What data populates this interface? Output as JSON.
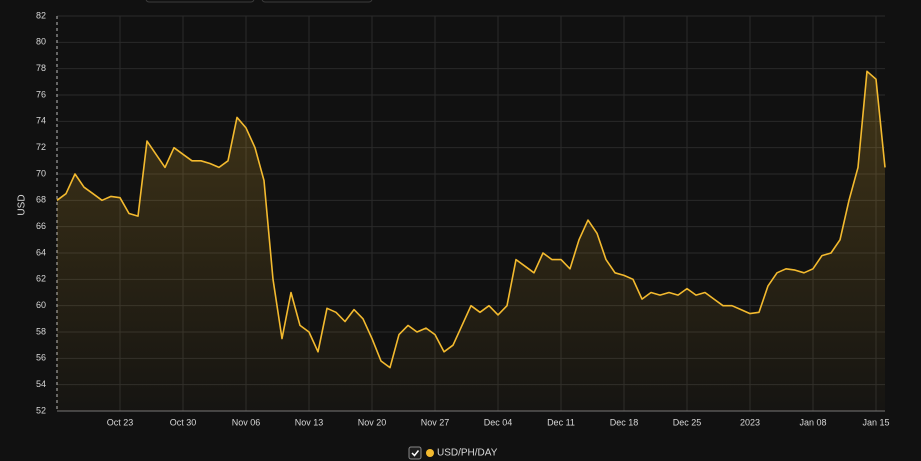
{
  "chart_data": {
    "type": "line",
    "y_label": "USD",
    "categories": [
      null,
      null,
      null,
      null,
      null,
      null,
      null,
      "Oct 23",
      null,
      null,
      null,
      null,
      null,
      null,
      "Oct 30",
      null,
      null,
      null,
      null,
      null,
      null,
      "Nov 06",
      null,
      null,
      null,
      null,
      null,
      null,
      "Nov 13",
      null,
      null,
      null,
      null,
      null,
      null,
      "Nov 20",
      null,
      null,
      null,
      null,
      null,
      null,
      "Nov 27",
      null,
      null,
      null,
      null,
      null,
      null,
      "Dec 04",
      null,
      null,
      null,
      null,
      null,
      null,
      "Dec 11",
      null,
      null,
      null,
      null,
      null,
      null,
      "Dec 18",
      null,
      null,
      null,
      null,
      null,
      null,
      "Dec 25",
      null,
      null,
      null,
      null,
      null,
      null,
      "2023",
      null,
      null,
      null,
      null,
      null,
      null,
      "Jan 08",
      null,
      null,
      null,
      null,
      null,
      null,
      "Jan 15",
      null
    ],
    "series": [
      {
        "name": "USD/PH/DAY",
        "color": "#f3ba2f",
        "values": [
          68,
          68.5,
          70,
          69,
          68.5,
          68,
          68.3,
          68.2,
          67,
          66.8,
          72.5,
          71.5,
          70.5,
          72,
          71.5,
          71,
          71,
          70.8,
          70.5,
          71,
          74.3,
          73.5,
          72,
          69.5,
          62,
          57.5,
          61,
          58.5,
          58,
          56.5,
          59.8,
          59.5,
          58.8,
          59.7,
          59,
          57.5,
          55.8,
          55.3,
          57.8,
          58.5,
          58,
          58.3,
          57.8,
          56.5,
          57,
          58.5,
          60,
          59.5,
          60,
          59.3,
          60,
          63.5,
          63,
          62.5,
          64,
          63.5,
          63.5,
          62.8,
          65,
          66.5,
          65.5,
          63.5,
          62.5,
          62.3,
          62,
          60.5,
          61,
          60.8,
          61,
          60.8,
          61.3,
          60.8,
          61,
          60.5,
          60,
          60,
          59.7,
          59.4,
          59.5,
          61.5,
          62.5,
          62.8,
          62.7,
          62.5,
          62.8,
          63.8,
          64,
          65,
          68,
          70.5,
          77.8,
          77.2,
          70.5
        ]
      }
    ],
    "ylim": [
      52,
      82
    ],
    "yticks": [
      52,
      54,
      56,
      58,
      60,
      62,
      64,
      66,
      68,
      70,
      72,
      74,
      76,
      78,
      80,
      82
    ],
    "grid": true
  }
}
